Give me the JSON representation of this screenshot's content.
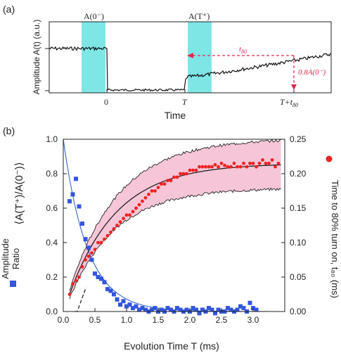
{
  "panel_a": {
    "label": "(a)",
    "ylabel": "Amplitude A(t) (a.u.)",
    "xlabel": "Time",
    "box1_label": "A(0⁻)",
    "box2_label": "A(T⁺)",
    "tick_0": "0",
    "tick_T": "T",
    "tick_Tt80": "T+t",
    "tick_Tt80_sub": "80",
    "t80_label": "t",
    "t80_sub": "80",
    "frac_label": "0.8A(0⁻)",
    "colors": {
      "shade": "#7fe6e6",
      "annot": "#e0284e",
      "trace": "#111111"
    }
  },
  "panel_b": {
    "label": "(b)",
    "ylabel_left": "⟨A(T⁺)/A(0⁻)⟩",
    "ylabel_left2": "Amplitude",
    "ylabel_left3": "Ratio",
    "ylabel_right": "Time to 80% turn on, t₈₀ (ms)",
    "xlabel": "Evolution Time T (ms)",
    "colors": {
      "blue": "#3355dd",
      "red": "#ee2222",
      "band": "#f6c6d8",
      "fit": "#222222",
      "blue_fit": "#3366cc"
    }
  },
  "chart_data": [
    {
      "type": "line",
      "panel": "a",
      "description_level": "schematic trace",
      "series": [
        {
          "segment": "before",
          "level": 0.92
        },
        {
          "segment": "off",
          "level": 0.0
        },
        {
          "segment": "after_turn_on",
          "start_level": 0.3,
          "end_level": 0.8
        }
      ],
      "xticks": [
        "0",
        "T",
        "T+t80"
      ]
    },
    {
      "type": "scatter",
      "panel": "b",
      "xlabel": "Evolution Time T (ms)",
      "ylabel": "Amplitude Ratio",
      "y2label": "Time to 80% turn on, t80 (ms)",
      "xlim": [
        0,
        3.5
      ],
      "ylim": [
        0,
        1.0
      ],
      "y2lim": [
        0,
        0.25
      ],
      "xticks": [
        0.0,
        0.5,
        1.0,
        1.5,
        2.0,
        2.5,
        3.0
      ],
      "yticks": [
        0.0,
        0.2,
        0.4,
        0.6,
        0.8,
        1.0
      ],
      "y2ticks": [
        0.0,
        0.05,
        0.1,
        0.15,
        0.2,
        0.25
      ],
      "blue_points": {
        "x": [
          0.1,
          0.15,
          0.2,
          0.25,
          0.3,
          0.35,
          0.4,
          0.45,
          0.5,
          0.55,
          0.6,
          0.65,
          0.7,
          0.75,
          0.8,
          0.85,
          0.9,
          0.95,
          1.0,
          1.05,
          1.1,
          1.15,
          1.2,
          1.25,
          1.3,
          1.35,
          1.4,
          1.45,
          1.5,
          1.55,
          1.6,
          1.65,
          1.7,
          1.75,
          1.8,
          1.85,
          1.9,
          1.95,
          2.0,
          2.05,
          2.1,
          2.15,
          2.2,
          2.25,
          2.3,
          2.35,
          2.4,
          2.45,
          2.5,
          2.55,
          2.6,
          2.65,
          2.7,
          2.75,
          2.8,
          2.85,
          2.9,
          2.95,
          3.0,
          3.05
        ],
        "y": [
          0.64,
          0.68,
          0.77,
          0.61,
          0.51,
          0.42,
          0.37,
          0.3,
          0.22,
          0.2,
          0.19,
          0.17,
          0.13,
          0.12,
          0.1,
          0.07,
          0.04,
          0.06,
          0.03,
          0.04,
          0.02,
          0.03,
          0.01,
          0.02,
          0.01,
          0.0,
          0.01,
          0.02,
          0.0,
          0.01,
          0.0,
          0.02,
          0.01,
          0.0,
          0.02,
          0.01,
          0.0,
          0.01,
          0.0,
          0.02,
          0.01,
          -0.01,
          0.01,
          0.0,
          0.02,
          0.01,
          -0.01,
          0.01,
          0.0,
          0.0,
          0.02,
          0.01,
          0.0,
          0.01,
          0.03,
          0.02,
          0.0,
          0.05,
          0.02,
          0.01
        ]
      },
      "blue_fit": {
        "form": "exp",
        "amplitude": 1.0,
        "tau": 0.38
      },
      "red_points": {
        "x": [
          0.1,
          0.15,
          0.2,
          0.25,
          0.3,
          0.35,
          0.4,
          0.45,
          0.5,
          0.55,
          0.6,
          0.65,
          0.7,
          0.75,
          0.8,
          0.85,
          0.9,
          0.95,
          1.0,
          1.05,
          1.1,
          1.15,
          1.2,
          1.25,
          1.3,
          1.35,
          1.4,
          1.45,
          1.5,
          1.55,
          1.6,
          1.65,
          1.7,
          1.75,
          1.8,
          1.85,
          1.9,
          1.95,
          2.0,
          2.05,
          2.1,
          2.15,
          2.2,
          2.25,
          2.3,
          2.35,
          2.4,
          2.45,
          2.5,
          2.55,
          2.6,
          2.65,
          2.7,
          2.75,
          2.8,
          2.85,
          2.9,
          2.95,
          3.0,
          3.05,
          3.1,
          3.15,
          3.2,
          3.25,
          3.3,
          3.35,
          3.4
        ],
        "y2": [
          0.025,
          0.04,
          0.045,
          0.05,
          0.065,
          0.075,
          0.08,
          0.085,
          0.09,
          0.1,
          0.1,
          0.105,
          0.11,
          0.115,
          0.12,
          0.125,
          0.13,
          0.135,
          0.14,
          0.14,
          0.145,
          0.15,
          0.155,
          0.16,
          0.165,
          0.17,
          0.175,
          0.175,
          0.18,
          0.185,
          0.185,
          0.19,
          0.19,
          0.195,
          0.195,
          0.2,
          0.2,
          0.2,
          0.205,
          0.205,
          0.205,
          0.21,
          0.21,
          0.21,
          0.21,
          0.21,
          0.213,
          0.21,
          0.215,
          0.212,
          0.21,
          0.21,
          0.215,
          0.21,
          0.21,
          0.215,
          0.21,
          0.215,
          0.215,
          0.21,
          0.215,
          0.22,
          0.215,
          0.215,
          0.22,
          0.21,
          0.215
        ]
      },
      "red_fit": {
        "form": "saturating",
        "start": 0.025,
        "asymptote": 0.215,
        "tau": 0.75
      }
    }
  ]
}
